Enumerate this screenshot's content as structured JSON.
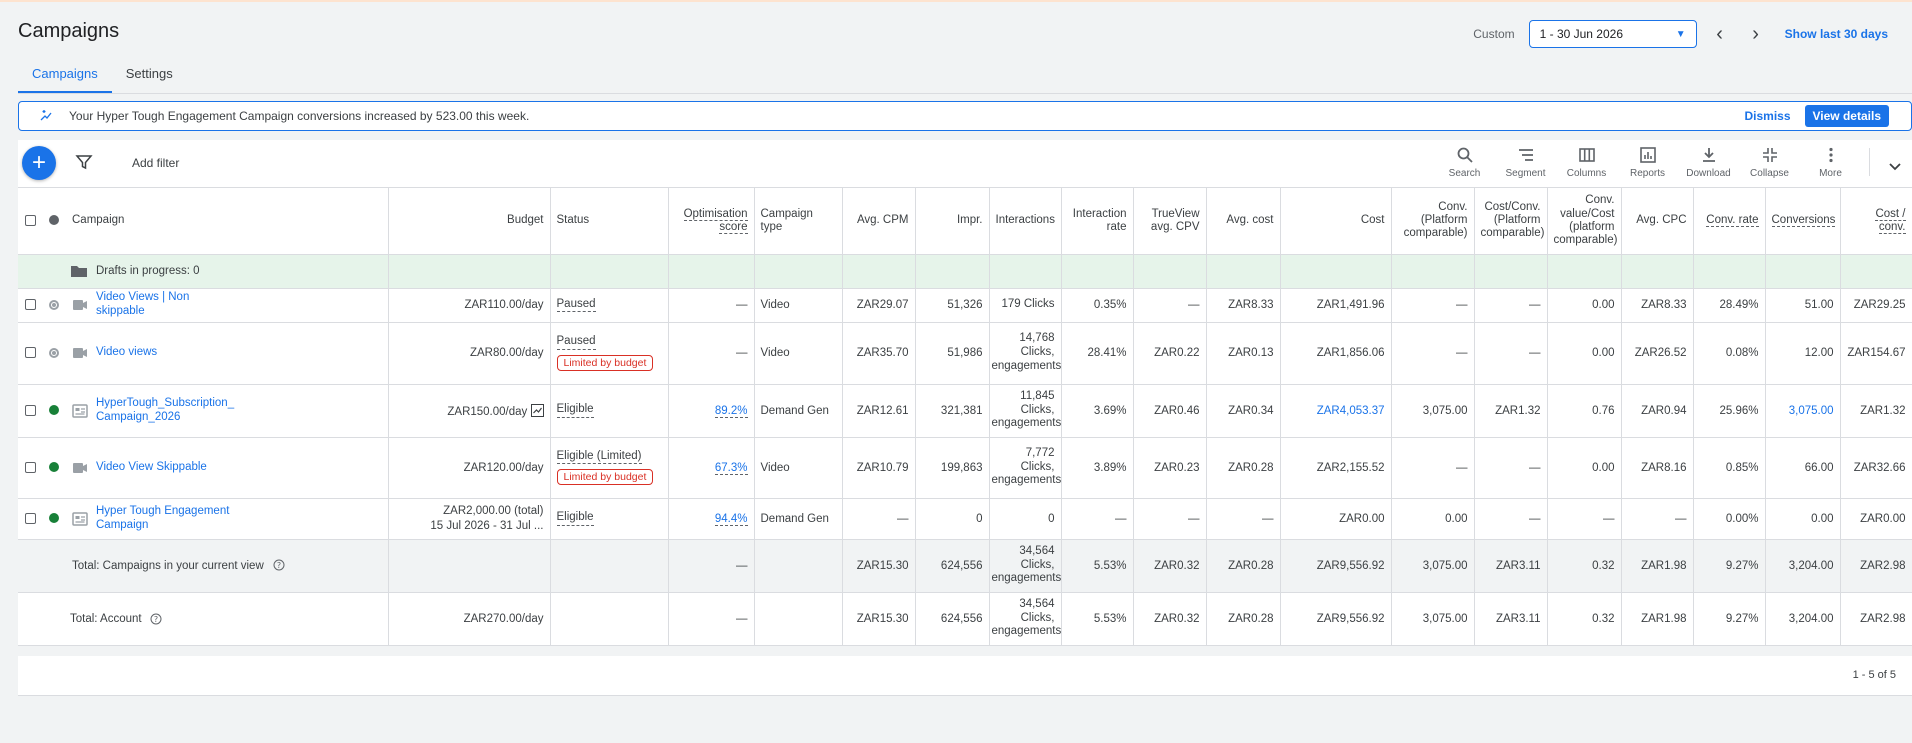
{
  "page": {
    "title": "Campaigns"
  },
  "date": {
    "label": "Custom",
    "range": "1 - 30 Jun 2026",
    "show_last": "Show last 30 days"
  },
  "tabs": [
    {
      "label": "Campaigns"
    },
    {
      "label": "Settings"
    }
  ],
  "notice": {
    "text": "Your Hyper Tough Engagement Campaign conversions increased by 523.00 this week.",
    "dismiss": "Dismiss",
    "view": "View details"
  },
  "toolbar": {
    "add_filter": "Add filter",
    "tools": [
      {
        "label": "Search",
        "icon": "search-icon"
      },
      {
        "label": "Segment",
        "icon": "segment-icon"
      },
      {
        "label": "Columns",
        "icon": "columns-icon"
      },
      {
        "label": "Reports",
        "icon": "reports-icon"
      },
      {
        "label": "Download",
        "icon": "download-icon"
      },
      {
        "label": "Collapse",
        "icon": "collapse-icon"
      },
      {
        "label": "More",
        "icon": "more-icon"
      }
    ]
  },
  "table": {
    "headers": {
      "campaign": "Campaign",
      "budget": "Budget",
      "status": "Status",
      "opt": "Optimisation score",
      "type": "Campaign type",
      "cpm": "Avg. CPM",
      "impr": "Impr.",
      "interactions": "Interactions",
      "int_rate": "Interaction rate",
      "trueview": "TrueView avg. CPV",
      "avg_cost": "Avg. cost",
      "cost": "Cost",
      "conv_pc": "Conv. (Platform comparable)",
      "cost_conv_pc": "Cost/Conv. (Platform comparable)",
      "conv_val_pc": "Conv. value/Cost (platform comparable)",
      "avg_cpc": "Avg. CPC",
      "conv_rate": "Conv. rate",
      "conversions": "Conversions",
      "cost_conv": "Cost / conv."
    },
    "drafts": "Drafts in progress: 0",
    "rows": [
      {
        "name": "Video Views | Non skippable",
        "budget": "ZAR110.00/day",
        "status": "Paused",
        "badge": "",
        "opt": "—",
        "type": "Video",
        "cpm": "ZAR29.07",
        "impr": "51,326",
        "interactions": "179 Clicks",
        "int_rate": "0.35%",
        "trueview": "—",
        "avg_cost": "ZAR8.33",
        "cost": "ZAR1,491.96",
        "conv_pc": "—",
        "cost_conv_pc": "—",
        "conv_val_pc": "0.00",
        "avg_cpc": "ZAR8.33",
        "conv_rate": "28.49%",
        "conversions": "51.00",
        "cost_conv": "ZAR29.25"
      },
      {
        "name": "Video views",
        "budget": "ZAR80.00/day",
        "status": "Paused",
        "badge": "Limited by budget",
        "opt": "—",
        "type": "Video",
        "cpm": "ZAR35.70",
        "impr": "51,986",
        "interactions": "14,768 Clicks, engagements",
        "int_rate": "28.41%",
        "trueview": "ZAR0.22",
        "avg_cost": "ZAR0.13",
        "cost": "ZAR1,856.06",
        "conv_pc": "—",
        "cost_conv_pc": "—",
        "conv_val_pc": "0.00",
        "avg_cpc": "ZAR26.52",
        "conv_rate": "0.08%",
        "conversions": "12.00",
        "cost_conv": "ZAR154.67"
      },
      {
        "name": "HyperTough_Subscription_ Campaign_2026",
        "budget": "ZAR150.00/day",
        "status": "Eligible",
        "badge": "",
        "opt": "89.2%",
        "type": "Demand Gen",
        "cpm": "ZAR12.61",
        "impr": "321,381",
        "interactions": "11,845 Clicks, engagements",
        "int_rate": "3.69%",
        "trueview": "ZAR0.46",
        "avg_cost": "ZAR0.34",
        "cost": "ZAR4,053.37",
        "conv_pc": "3,075.00",
        "cost_conv_pc": "ZAR1.32",
        "conv_val_pc": "0.76",
        "avg_cpc": "ZAR0.94",
        "conv_rate": "25.96%",
        "conversions": "3,075.00",
        "cost_conv": "ZAR1.32"
      },
      {
        "name": "Video View Skippable",
        "budget": "ZAR120.00/day",
        "status": "Eligible (Limited)",
        "badge": "Limited by budget",
        "opt": "67.3%",
        "type": "Video",
        "cpm": "ZAR10.79",
        "impr": "199,863",
        "interactions": "7,772 Clicks, engagements",
        "int_rate": "3.89%",
        "trueview": "ZAR0.23",
        "avg_cost": "ZAR0.28",
        "cost": "ZAR2,155.52",
        "conv_pc": "—",
        "cost_conv_pc": "—",
        "conv_val_pc": "0.00",
        "avg_cpc": "ZAR8.16",
        "conv_rate": "0.85%",
        "conversions": "66.00",
        "cost_conv": "ZAR32.66"
      },
      {
        "name": "Hyper Tough Engagement Campaign",
        "budget": "ZAR2,000.00 (total)",
        "budget2": "15 Jul 2026 - 31 Jul ...",
        "status": "Eligible",
        "badge": "",
        "opt": "94.4%",
        "type": "Demand Gen",
        "cpm": "—",
        "impr": "0",
        "interactions": "0",
        "int_rate": "—",
        "trueview": "—",
        "avg_cost": "—",
        "cost": "ZAR0.00",
        "conv_pc": "0.00",
        "cost_conv_pc": "—",
        "conv_val_pc": "—",
        "avg_cpc": "—",
        "conv_rate": "0.00%",
        "conversions": "0.00",
        "cost_conv": "ZAR0.00"
      }
    ],
    "total_view": {
      "label": "Total: Campaigns in your current view",
      "budget": "",
      "opt": "—",
      "cpm": "ZAR15.30",
      "impr": "624,556",
      "interactions": "34,564 Clicks, engagements",
      "int_rate": "5.53%",
      "trueview": "ZAR0.32",
      "avg_cost": "ZAR0.28",
      "cost": "ZAR9,556.92",
      "conv_pc": "3,075.00",
      "cost_conv_pc": "ZAR3.11",
      "conv_val_pc": "0.32",
      "avg_cpc": "ZAR1.98",
      "conv_rate": "9.27%",
      "conversions": "3,204.00",
      "cost_conv": "ZAR2.98"
    },
    "total_account": {
      "label": "Total: Account",
      "budget": "ZAR270.00/day",
      "opt": "—",
      "cpm": "ZAR15.30",
      "impr": "624,556",
      "interactions": "34,564 Clicks, engagements",
      "int_rate": "5.53%",
      "trueview": "ZAR0.32",
      "avg_cost": "ZAR0.28",
      "cost": "ZAR9,556.92",
      "conv_pc": "3,075.00",
      "cost_conv_pc": "ZAR3.11",
      "conv_val_pc": "0.32",
      "avg_cpc": "ZAR1.98",
      "conv_rate": "9.27%",
      "conversions": "3,204.00",
      "cost_conv": "ZAR2.98"
    }
  },
  "pagination": {
    "text": "1 - 5 of 5"
  }
}
